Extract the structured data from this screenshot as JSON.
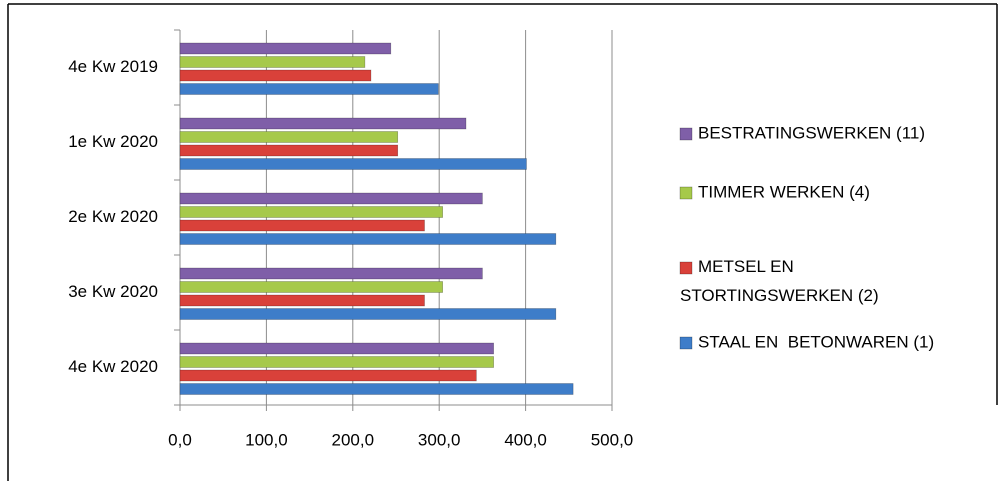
{
  "chart_data": {
    "type": "bar",
    "orientation": "horizontal",
    "categories": [
      "4e Kw 2019",
      "1e Kw 2020",
      "2e Kw 2020",
      "3e Kw 2020",
      "4e Kw 2020"
    ],
    "series": [
      {
        "name": "STAAL EN  BETONWAREN (1)",
        "color": "#3e7dc9",
        "values": [
          299,
          401,
          435,
          435,
          455
        ]
      },
      {
        "name": "METSEL EN\nSTORTINGSWERKEN (2)",
        "color": "#d9413a",
        "values": [
          221,
          252,
          283,
          283,
          343
        ]
      },
      {
        "name": "TIMMER WERKEN (4)",
        "color": "#a6c94a",
        "values": [
          214,
          252,
          304,
          304,
          363
        ]
      },
      {
        "name": "BESTRATINGSWERKEN (11)",
        "color": "#7f5fa8",
        "values": [
          244,
          331,
          350,
          350,
          363
        ]
      }
    ],
    "xlim": [
      0,
      500
    ],
    "xticks": [
      {
        "value": 0,
        "label": "0,0"
      },
      {
        "value": 100,
        "label": "100,0"
      },
      {
        "value": 200,
        "label": "200,0"
      },
      {
        "value": 300,
        "label": "300,0"
      },
      {
        "value": 400,
        "label": "400,0"
      },
      {
        "value": 500,
        "label": "500,0"
      }
    ],
    "grid": true,
    "legend": "right"
  }
}
